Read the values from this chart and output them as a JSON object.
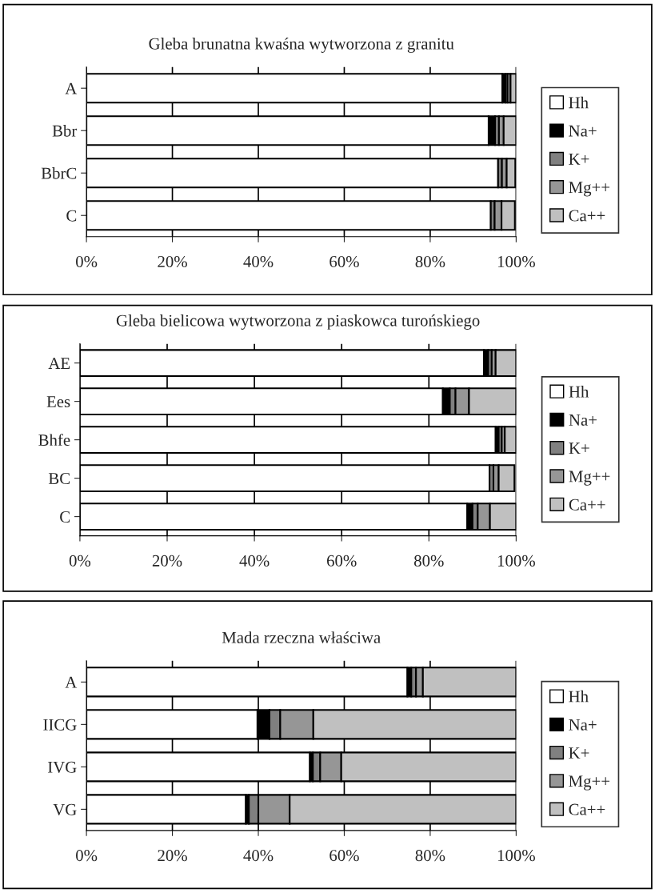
{
  "chart_data": [
    {
      "type": "bar",
      "orientation": "horizontal",
      "stacked": true,
      "title": "Gleba brunatna kwaśna wytworzona z granitu",
      "categories": [
        "A",
        "Bbr",
        "BbrC",
        "C"
      ],
      "series": [
        {
          "name": "Hh",
          "color": "#ffffff",
          "values": [
            96.8,
            93.6,
            95.8,
            94.1
          ]
        },
        {
          "name": "Na+",
          "color": "#000000",
          "values": [
            0.7,
            1.5,
            null,
            null
          ]
        },
        {
          "name": "K+",
          "color": "#808080",
          "values": [
            0.5,
            0.9,
            0.9,
            0.9
          ]
        },
        {
          "name": "Mg++",
          "color": "#969696",
          "values": [
            0.7,
            1.1,
            1.1,
            1.6
          ]
        },
        {
          "name": "Ca++",
          "color": "#c0c0c0",
          "values": [
            1.3,
            2.9,
            2.0,
            3.1
          ]
        }
      ],
      "xlim": [
        0,
        100
      ],
      "xticks": [
        {
          "value": 0,
          "label": "0%"
        },
        {
          "value": 20,
          "label": "20%"
        },
        {
          "value": 40,
          "label": "40%"
        },
        {
          "value": 60,
          "label": "60%"
        },
        {
          "value": 80,
          "label": "80%"
        },
        {
          "value": 100,
          "label": "100%"
        }
      ],
      "grid": "x",
      "legend": "right"
    },
    {
      "type": "bar",
      "orientation": "horizontal",
      "stacked": true,
      "title": "Gleba bielicowa wytworzona z piaskowca turońskiego",
      "categories": [
        "AE",
        "Ees",
        "Bhfe",
        "BC",
        "C"
      ],
      "series": [
        {
          "name": "Hh",
          "color": "#ffffff",
          "values": [
            92.6,
            83.2,
            95.3,
            93.9,
            88.8
          ]
        },
        {
          "name": "Na+",
          "color": "#000000",
          "values": [
            1.0,
            1.6,
            0.7,
            null,
            1.2
          ]
        },
        {
          "name": "K+",
          "color": "#808080",
          "values": [
            0.8,
            1.3,
            0.7,
            0.9,
            1.2
          ]
        },
        {
          "name": "Mg++",
          "color": "#969696",
          "values": [
            0.9,
            3.1,
            0.7,
            1.2,
            2.8
          ]
        },
        {
          "name": "Ca++",
          "color": "#c0c0c0",
          "values": [
            4.7,
            10.8,
            2.6,
            3.6,
            6.0
          ]
        }
      ],
      "xlim": [
        0,
        100
      ],
      "xticks": [
        {
          "value": 0,
          "label": "0%"
        },
        {
          "value": 20,
          "label": "20%"
        },
        {
          "value": 40,
          "label": "40%"
        },
        {
          "value": 60,
          "label": "60%"
        },
        {
          "value": 80,
          "label": "80%"
        },
        {
          "value": 100,
          "label": "100%"
        }
      ],
      "grid": "x",
      "legend": "right"
    },
    {
      "type": "bar",
      "orientation": "horizontal",
      "stacked": true,
      "title": "Mada rzeczna właściwa",
      "categories": [
        "A",
        "IICG",
        "IVG",
        "VG"
      ],
      "series": [
        {
          "name": "Hh",
          "color": "#ffffff",
          "values": [
            74.7,
            39.8,
            52.0,
            37.1
          ]
        },
        {
          "name": "Na+",
          "color": "#000000",
          "values": [
            0.9,
            2.8,
            0.7,
            0.7
          ]
        },
        {
          "name": "K+",
          "color": "#808080",
          "values": [
            1.1,
            2.5,
            1.7,
            2.2
          ]
        },
        {
          "name": "Mg++",
          "color": "#969696",
          "values": [
            1.6,
            7.7,
            4.9,
            7.3
          ]
        },
        {
          "name": "Ca++",
          "color": "#c0c0c0",
          "values": [
            21.7,
            47.2,
            40.7,
            52.7
          ]
        }
      ],
      "xlim": [
        0,
        100
      ],
      "xticks": [
        {
          "value": 0,
          "label": "0%"
        },
        {
          "value": 20,
          "label": "20%"
        },
        {
          "value": 40,
          "label": "40%"
        },
        {
          "value": 60,
          "label": "60%"
        },
        {
          "value": 80,
          "label": "80%"
        },
        {
          "value": 100,
          "label": "100%"
        }
      ],
      "grid": "x",
      "legend": "right"
    }
  ]
}
